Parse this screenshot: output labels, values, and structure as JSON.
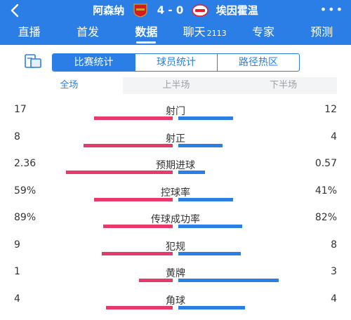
{
  "header": {
    "home_team": "阿森纳",
    "away_team": "埃因霍温",
    "score": "4 - 0",
    "more": "•••"
  },
  "tabs": [
    {
      "label": "直播"
    },
    {
      "label": "首发"
    },
    {
      "label": "数据",
      "active": true
    },
    {
      "label": "聊天",
      "count": "2113"
    },
    {
      "label": "专家"
    },
    {
      "label": "预测"
    }
  ],
  "segments": [
    "比赛统计",
    "球员统计",
    "路径热区"
  ],
  "periods": [
    "全场",
    "上半场",
    "下半场"
  ],
  "colors": {
    "home": "#e8396b",
    "away": "#2a7ee6",
    "accent": "#2a7ee6"
  },
  "stats": [
    {
      "name": "射门",
      "home": "17",
      "away": "12",
      "home_ratio": 0.59,
      "away_ratio": 0.41
    },
    {
      "name": "射正",
      "home": "8",
      "away": "4",
      "home_ratio": 0.67,
      "away_ratio": 0.33
    },
    {
      "name": "预期进球",
      "home": "2.36",
      "away": "0.57",
      "home_ratio": 0.8,
      "away_ratio": 0.2
    },
    {
      "name": "控球率",
      "home": "59%",
      "away": "41%",
      "home_ratio": 0.59,
      "away_ratio": 0.41
    },
    {
      "name": "传球成功率",
      "home": "89%",
      "away": "82%",
      "home_ratio": 0.52,
      "away_ratio": 0.48
    },
    {
      "name": "犯规",
      "home": "9",
      "away": "8",
      "home_ratio": 0.53,
      "away_ratio": 0.47
    },
    {
      "name": "黄牌",
      "home": "1",
      "away": "3",
      "home_ratio": 0.25,
      "away_ratio": 0.75
    },
    {
      "name": "角球",
      "home": "4",
      "away": "4",
      "home_ratio": 0.5,
      "away_ratio": 0.5
    }
  ]
}
